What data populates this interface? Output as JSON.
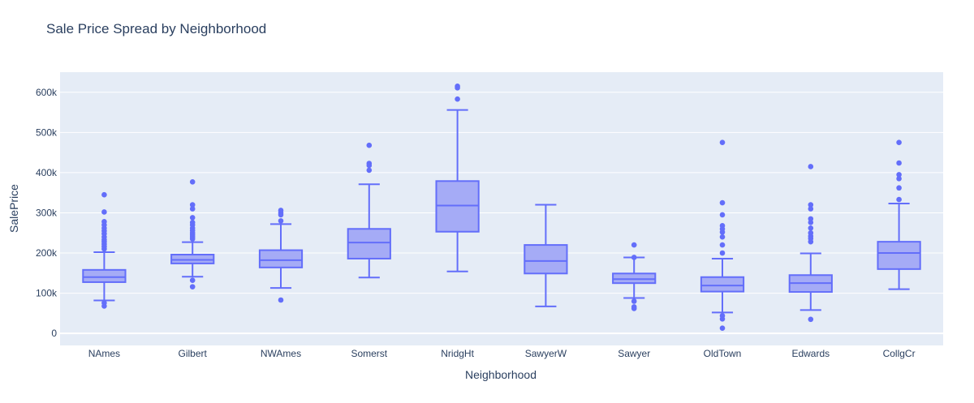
{
  "chart_data": {
    "type": "box",
    "title": "Sale Price Spread by Neighborhood",
    "xlabel": "Neighborhood",
    "ylabel": "SalePrice",
    "ylim": [
      -30000,
      650000
    ],
    "yticks": [
      0,
      100000,
      200000,
      300000,
      400000,
      500000,
      600000
    ],
    "ytick_labels": [
      "0",
      "100k",
      "200k",
      "300k",
      "400k",
      "500k",
      "600k"
    ],
    "grid": true,
    "legend": "none",
    "colors": {
      "plot_bg": "#e5ecf6",
      "box_line": "#636efa",
      "box_fill": "#a5abf6",
      "text": "#2a3f5f",
      "grid": "#ffffff"
    },
    "categories": [
      "NAmes",
      "Gilbert",
      "NWAmes",
      "Somerst",
      "NridgHt",
      "SawyerW",
      "Sawyer",
      "OldTown",
      "Edwards",
      "CollgCr"
    ],
    "boxes": [
      {
        "category": "NAmes",
        "lowerfence": 82000,
        "q1": 127500,
        "median": 140000,
        "q3": 158000,
        "upperfence": 202000,
        "outliers": [
          345000,
          302000,
          278000,
          270000,
          262000,
          255000,
          248000,
          240000,
          233000,
          228000,
          222000,
          216000,
          210000,
          76000,
          68000
        ]
      },
      {
        "category": "Gilbert",
        "lowerfence": 141000,
        "q1": 174000,
        "median": 183000,
        "q3": 196000,
        "upperfence": 227000,
        "outliers": [
          377000,
          320000,
          310000,
          288000,
          276000,
          270000,
          262000,
          256000,
          250000,
          245000,
          240000,
          235000,
          132000,
          116000
        ]
      },
      {
        "category": "NWAmes",
        "lowerfence": 113000,
        "q1": 164000,
        "median": 182000,
        "q3": 207000,
        "upperfence": 272000,
        "outliers": [
          306000,
          300000,
          295000,
          280000,
          83000
        ]
      },
      {
        "category": "Somerst",
        "lowerfence": 139000,
        "q1": 186000,
        "median": 226000,
        "q3": 260000,
        "upperfence": 371000,
        "outliers": [
          468000,
          423000,
          418000,
          406000
        ]
      },
      {
        "category": "NridgHt",
        "lowerfence": 154000,
        "q1": 253000,
        "median": 318000,
        "q3": 379000,
        "upperfence": 556000,
        "outliers": [
          615000,
          611000,
          583000
        ]
      },
      {
        "category": "SawyerW",
        "lowerfence": 67000,
        "q1": 149000,
        "median": 180000,
        "q3": 220000,
        "upperfence": 320000,
        "outliers": []
      },
      {
        "category": "Sawyer",
        "lowerfence": 88000,
        "q1": 125000,
        "median": 135000,
        "q3": 149000,
        "upperfence": 189000,
        "outliers": [
          220000,
          189000,
          80000,
          66000,
          62000
        ]
      },
      {
        "category": "OldTown",
        "lowerfence": 52000,
        "q1": 104000,
        "median": 119000,
        "q3": 140000,
        "upperfence": 186000,
        "outliers": [
          475000,
          325000,
          295000,
          268000,
          260000,
          252000,
          240000,
          220000,
          200000,
          44000,
          36000,
          13000
        ]
      },
      {
        "category": "Edwards",
        "lowerfence": 58000,
        "q1": 103000,
        "median": 125000,
        "q3": 145000,
        "upperfence": 199000,
        "outliers": [
          415000,
          320000,
          310000,
          285000,
          276000,
          262000,
          250000,
          242000,
          236000,
          228000,
          35000
        ]
      },
      {
        "category": "CollgCr",
        "lowerfence": 110000,
        "q1": 160000,
        "median": 200000,
        "q3": 228000,
        "upperfence": 323000,
        "outliers": [
          475000,
          424000,
          395000,
          385000,
          362000,
          333000
        ]
      }
    ]
  }
}
